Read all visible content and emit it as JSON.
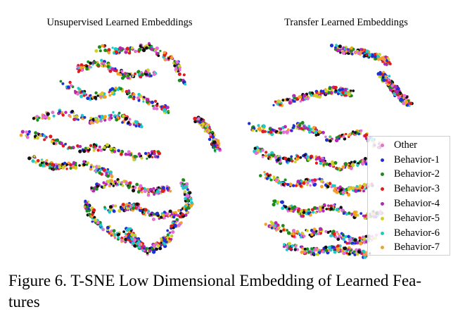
{
  "figure": {
    "caption_line1": "Figure 6. T-SNE Low Dimensional Embedding of Learned Fea-",
    "caption_line2": "tures"
  },
  "panels": [
    {
      "title": "Unsupervised Learned Embeddings"
    },
    {
      "title": "Transfer Learned Embeddings"
    }
  ],
  "legend": {
    "items": [
      {
        "label": "Other",
        "color": "#e36fd6"
      },
      {
        "label": "Behavior-1",
        "color": "#1f2fd6"
      },
      {
        "label": "Behavior-2",
        "color": "#1b8c1b"
      },
      {
        "label": "Behavior-3",
        "color": "#e01b1b"
      },
      {
        "label": "Behavior-4",
        "color": "#b426b4"
      },
      {
        "label": "Behavior-5",
        "color": "#cfcf2a"
      },
      {
        "label": "Behavior-6",
        "color": "#1ec9c9"
      },
      {
        "label": "Behavior-7",
        "color": "#f5a025"
      }
    ],
    "placement": "right"
  },
  "chart_data": [
    {
      "type": "scatter",
      "title": "Unsupervised Learned Embeddings",
      "axes": "hidden",
      "grid": false
    },
    {
      "type": "scatter",
      "title": "Transfer Learned Embeddings",
      "axes": "hidden",
      "grid": false,
      "legend": "right"
    }
  ]
}
